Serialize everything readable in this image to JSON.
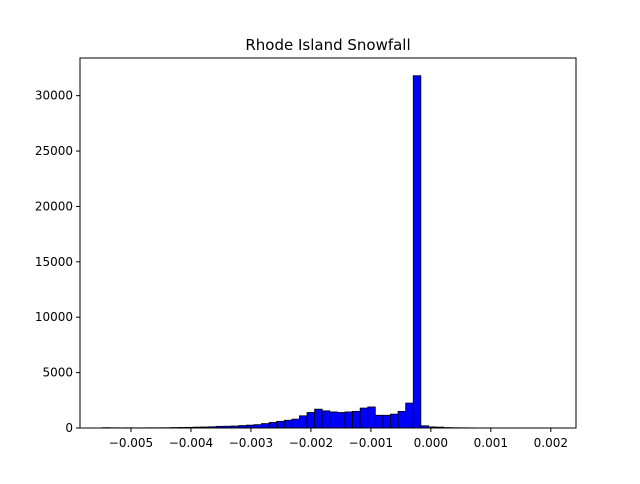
{
  "chart_data": {
    "type": "histogram",
    "title": "Rhode Island Snowfall",
    "xlabel": "",
    "ylabel": "",
    "xlim": [
      -0.00585,
      0.00242
    ],
    "ylim": [
      0,
      33400
    ],
    "x_ticks": [
      -0.005,
      -0.004,
      -0.003,
      -0.002,
      -0.001,
      0.0,
      0.001,
      0.002
    ],
    "x_tick_labels": [
      "−0.005",
      "−0.004",
      "−0.003",
      "−0.002",
      "−0.001",
      "0.000",
      "0.001",
      "0.002"
    ],
    "y_ticks": [
      0,
      5000,
      10000,
      15000,
      20000,
      25000,
      30000
    ],
    "y_tick_labels": [
      "0",
      "5000",
      "10000",
      "15000",
      "20000",
      "25000",
      "30000"
    ],
    "bar_color": "#0000ff",
    "edge_color": "#000000",
    "bin_start": -0.00548,
    "bin_width": 0.0001265,
    "counts": [
      30,
      20,
      15,
      20,
      15,
      15,
      20,
      20,
      25,
      40,
      50,
      60,
      80,
      90,
      110,
      150,
      160,
      180,
      220,
      260,
      300,
      400,
      500,
      600,
      700,
      800,
      1100,
      1400,
      1700,
      1550,
      1450,
      1400,
      1450,
      1500,
      1800,
      1900,
      1150,
      1150,
      1250,
      1500,
      2250,
      31800,
      200,
      100,
      80,
      40,
      25,
      20,
      15,
      10,
      10,
      10,
      10,
      10,
      10,
      10,
      10,
      10,
      8,
      5
    ]
  }
}
